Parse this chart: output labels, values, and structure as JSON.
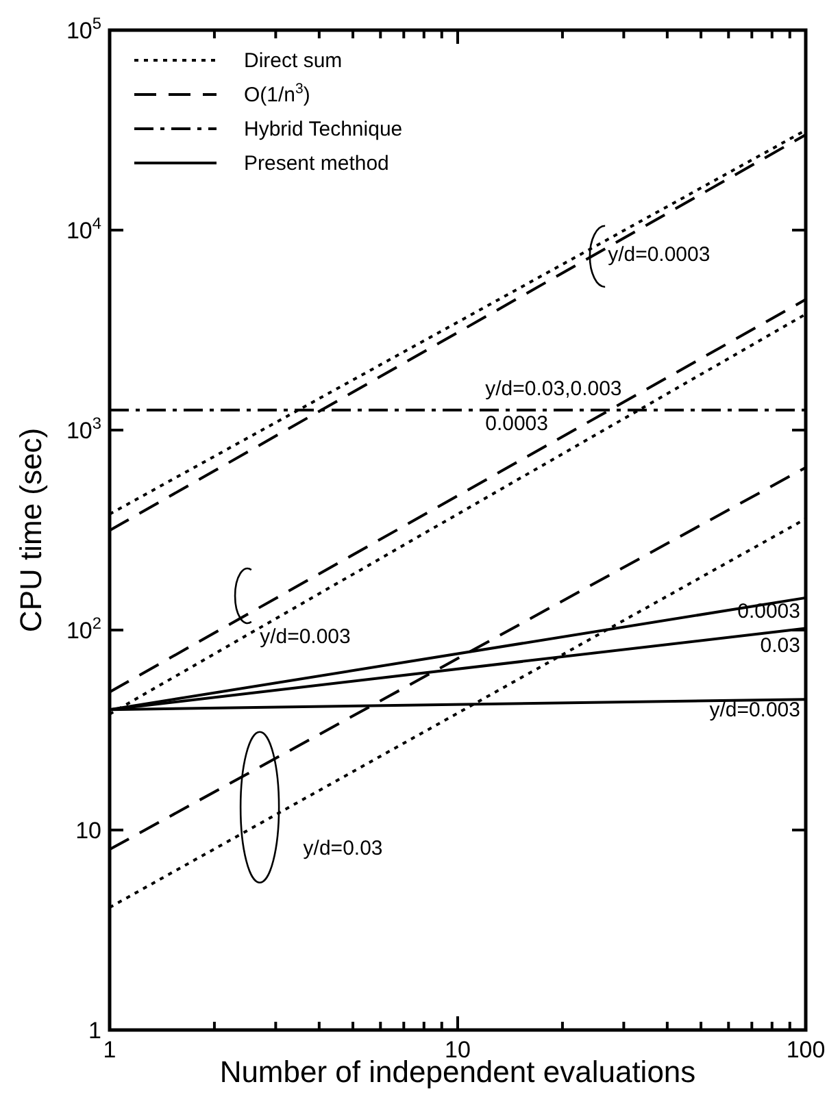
{
  "chart_data": {
    "type": "line",
    "xlabel": "Number of independent evaluations",
    "ylabel": "CPU time  (sec)",
    "log": "xy",
    "xlim": [
      1,
      100
    ],
    "ylim": [
      1,
      100000
    ],
    "xticks": [
      1,
      {
        "value": 2,
        "label": null
      },
      {
        "value": 3,
        "label": null
      },
      {
        "value": 4,
        "label": null
      },
      {
        "value": 5,
        "label": null
      },
      {
        "value": 6,
        "label": null
      },
      {
        "value": 7,
        "label": null
      },
      {
        "value": 8,
        "label": null
      },
      {
        "value": 9,
        "label": null
      },
      10,
      {
        "value": 20,
        "label": null
      },
      {
        "value": 30,
        "label": null
      },
      {
        "value": 40,
        "label": null
      },
      {
        "value": 50,
        "label": null
      },
      {
        "value": 60,
        "label": null
      },
      {
        "value": 70,
        "label": null
      },
      {
        "value": 80,
        "label": null
      },
      {
        "value": 90,
        "label": null
      },
      100
    ],
    "yticks": [
      1,
      10,
      {
        "value": 100,
        "label": "10$^{2}$"
      },
      {
        "value": 1000,
        "label": "10$^{3}$"
      },
      {
        "value": 10000,
        "label": "10$^{4}$"
      },
      {
        "value": 100000,
        "label": "10$^{5}$"
      }
    ],
    "x": [
      1,
      100
    ],
    "legend": "top left",
    "grid": false,
    "series": [
      {
        "name": "Direct sum",
        "color": "#000000",
        "line_style": "dotted",
        "values": [
          380,
          31600
        ]
      },
      {
        "color": "#000000",
        "line_style": "dotted",
        "values": [
          38,
          3800
        ]
      },
      {
        "color": "#000000",
        "line_style": "dotted",
        "values": [
          4.1,
          360
        ]
      },
      {
        "name": "O(1/n$^{3}$)",
        "color": "#000000",
        "line_style": "dashed",
        "values": [
          315,
          30000
        ]
      },
      {
        "color": "#000000",
        "line_style": "dashed",
        "values": [
          49,
          4500
        ]
      },
      {
        "color": "#000000",
        "line_style": "dashed",
        "values": [
          8,
          650
        ]
      },
      {
        "name": "Hybrid Technique",
        "color": "#000000",
        "line_style": "dashdot",
        "values": [
          1260,
          1260
        ]
      },
      {
        "name": "Present method",
        "color": "#000000",
        "line_style": "solid",
        "values": [
          40,
          145
        ]
      },
      {
        "color": "#000000",
        "line_style": "solid",
        "values": [
          40,
          102
        ]
      },
      {
        "color": "#000000",
        "line_style": "solid",
        "values": [
          40,
          45
        ]
      }
    ],
    "annotations": [
      "y/d=0.0003",
      "y/d=0.03,0.003",
      "0.0003",
      "y/d=0.003",
      "0.0003",
      "0.03",
      "y/d=0.003",
      "y/d=0.03"
    ]
  }
}
